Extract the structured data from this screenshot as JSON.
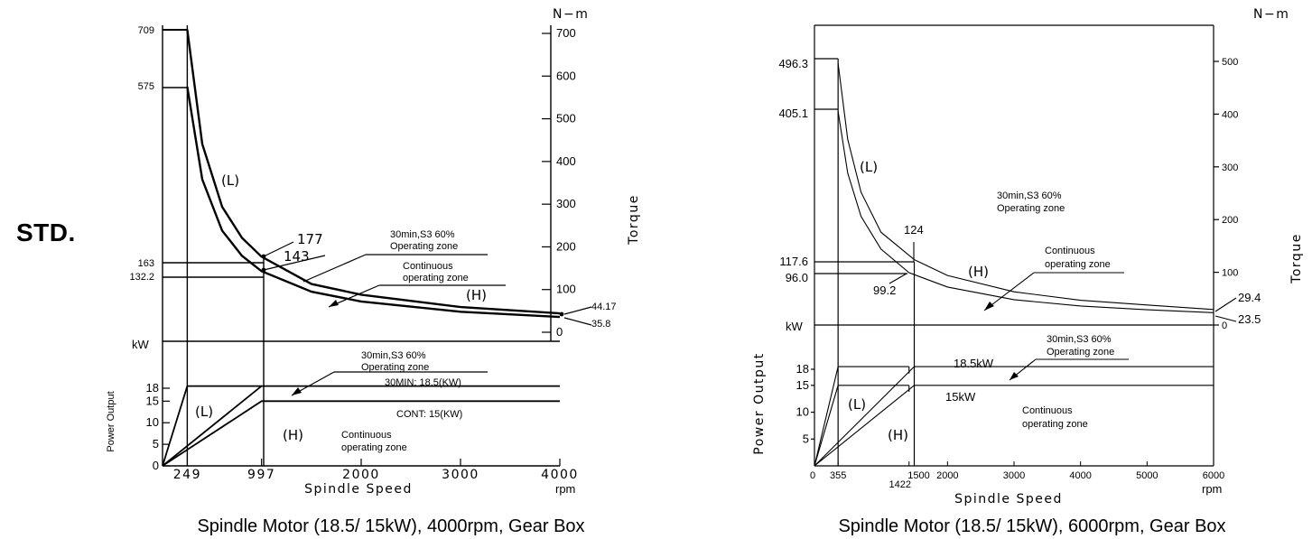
{
  "side_label": "STD.",
  "chart_data": [
    {
      "type": "line",
      "title": "Spindle Motor (18.5/ 15kW), 4000rpm, Gear Box",
      "xlabel": "Spindle Speed",
      "x_unit": "rpm",
      "xlim": [
        0,
        4000
      ],
      "x_ticks": [
        "249",
        "997",
        "2000",
        "3000",
        "4000"
      ],
      "torque_axis": {
        "label": "Torque",
        "unit": "N−m",
        "ylim": [
          0,
          700
        ],
        "ticks": [
          "0",
          "100",
          "200",
          "300",
          "400",
          "500",
          "600",
          "700"
        ]
      },
      "power_axis": {
        "label": "Power Output",
        "unit": "kW",
        "ylim": [
          0,
          20
        ],
        "ticks": [
          "0",
          "5",
          "10",
          "15",
          "18"
        ]
      },
      "left_torque_labels": [
        "709",
        "575",
        "163",
        "132.2"
      ],
      "series": [
        {
          "name": "",
          "kind": "torque",
          "points": [
            [
              249,
              709
            ],
            [
              400,
              441
            ],
            [
              600,
              294
            ],
            [
              800,
              221
            ],
            [
              997,
              177
            ],
            [
              1500,
              113
            ],
            [
              2000,
              88
            ],
            [
              3000,
              59
            ],
            [
              4000,
              44.17
            ]
          ]
        },
        {
          "name": "",
          "kind": "torque",
          "points": [
            [
              249,
              575
            ],
            [
              400,
              358
            ],
            [
              600,
              238
            ],
            [
              800,
              179
            ],
            [
              997,
              143
            ],
            [
              1500,
              95
            ],
            [
              2000,
              72
            ],
            [
              3000,
              48
            ],
            [
              4000,
              35.8
            ]
          ]
        },
        {
          "name": "",
          "kind": "power",
          "points": [
            [
              0,
              0
            ],
            [
              249,
              18.5
            ],
            [
              4000,
              18.5
            ]
          ]
        },
        {
          "name": "",
          "kind": "power",
          "points": [
            [
              0,
              0
            ],
            [
              997,
              18.5
            ]
          ]
        },
        {
          "name": "",
          "kind": "power",
          "points": [
            [
              0,
              0
            ],
            [
              997,
              15
            ],
            [
              4000,
              15
            ]
          ]
        }
      ],
      "annotations": {
        "point_177": "177",
        "point_143": "143",
        "end_44": "44.17",
        "end_35": "35.8",
        "zone_30min_line1": "30min,S3  60%",
        "zone_30min_line2": "Operating  zone",
        "cont_line1": "Continuous",
        "cont_line2": "operating  zone",
        "low_gear": "(L)",
        "high_gear": "(H)",
        "power_30min_line1": "30min,S3  60%",
        "power_30min_line2": "Operating  zone",
        "power_30min_value": "30MIN:  18.5(KW)",
        "power_cont_value": "CONT:  15(KW)",
        "power_low_gear": "(L)",
        "power_high_gear": "(H)",
        "power_cont_line1": "Continuous",
        "power_cont_line2": "operating  zone"
      }
    },
    {
      "type": "line",
      "title": "Spindle Motor (18.5/ 15kW), 6000rpm, Gear Box",
      "xlabel": "Spindle Speed",
      "x_unit": "rpm",
      "xlim": [
        0,
        6000
      ],
      "x_ticks": [
        "0",
        "355",
        "1422",
        "1500",
        "2000",
        "3000",
        "4000",
        "5000",
        "6000"
      ],
      "torque_axis": {
        "label": "Torque",
        "unit": "N−m",
        "ylim": [
          0,
          500
        ],
        "ticks": [
          "0",
          "100",
          "200",
          "300",
          "400",
          "500"
        ]
      },
      "power_axis": {
        "label": "Power Output",
        "unit": "kW",
        "ylim": [
          0,
          20
        ],
        "ticks": [
          "5",
          "10",
          "15",
          "18"
        ]
      },
      "left_torque_labels": [
        "496.3",
        "405.1",
        "117.6",
        "96.0"
      ],
      "series": [
        {
          "name": "",
          "kind": "torque",
          "points": [
            [
              355,
              496.3
            ],
            [
              500,
              352
            ],
            [
              700,
              252
            ],
            [
              1000,
              176
            ],
            [
              1500,
              124
            ],
            [
              2000,
              94
            ],
            [
              3000,
              63
            ],
            [
              4000,
              47
            ],
            [
              5000,
              38
            ],
            [
              6000,
              29.4
            ]
          ]
        },
        {
          "name": "",
          "kind": "torque",
          "points": [
            [
              355,
              405.1
            ],
            [
              500,
              288
            ],
            [
              700,
              206
            ],
            [
              1000,
              144
            ],
            [
              1422,
              99.2
            ],
            [
              2000,
              72
            ],
            [
              3000,
              48
            ],
            [
              4000,
              36
            ],
            [
              5000,
              29
            ],
            [
              6000,
              23.5
            ]
          ]
        },
        {
          "name": "",
          "kind": "power",
          "points": [
            [
              0,
              0
            ],
            [
              355,
              18.5
            ],
            [
              1422,
              18.5
            ]
          ]
        },
        {
          "name": "",
          "kind": "power",
          "points": [
            [
              0,
              0
            ],
            [
              355,
              15
            ],
            [
              1422,
              15
            ]
          ]
        },
        {
          "name": "",
          "kind": "power",
          "points": [
            [
              0,
              0
            ],
            [
              1500,
              18.5
            ],
            [
              6000,
              18.5
            ]
          ]
        },
        {
          "name": "",
          "kind": "power",
          "points": [
            [
              0,
              0
            ],
            [
              1500,
              15
            ],
            [
              6000,
              15
            ]
          ]
        }
      ],
      "annotations": {
        "point_124": "124",
        "point_99": "99.2",
        "end_29": "29.4",
        "end_23": "23.5",
        "zone_30min_line1": "30min,S3  60%",
        "zone_30min_line2": "Operating  zone",
        "cont_line1": "Continuous",
        "cont_line2": "operating  zone",
        "low_gear": "(L)",
        "high_gear": "(H)",
        "power_30min_line1": "30min,S3  60%",
        "power_30min_line2": "Operating  zone",
        "power_185": "18.5kW",
        "power_15": "15kW",
        "power_low_gear": "(L)",
        "power_high_gear": "(H)",
        "power_cont_line1": "Continuous",
        "power_cont_line2": "operating  zone"
      }
    }
  ]
}
